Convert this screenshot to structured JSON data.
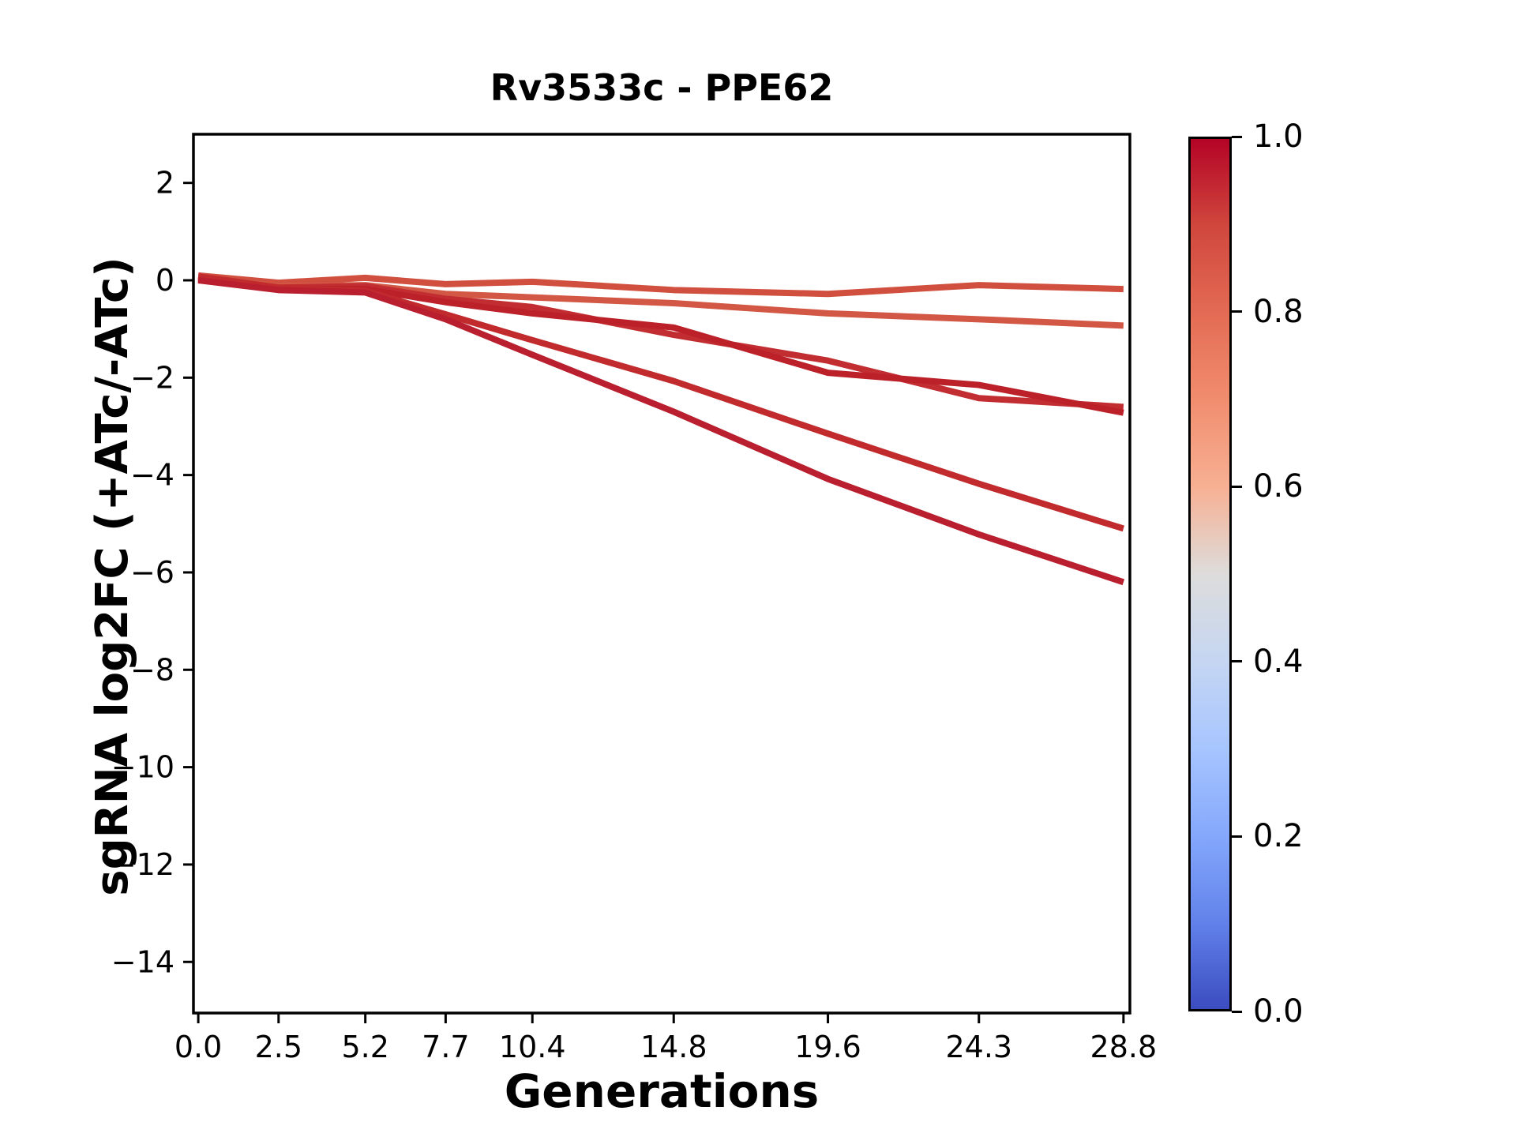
{
  "chart_data": {
    "type": "line",
    "title": "Rv3533c - PPE62",
    "xlabel": "Generations",
    "ylabel": "sgRNA log2FC (+ATc/-ATc)",
    "x": [
      0.0,
      2.5,
      5.2,
      7.7,
      10.4,
      14.8,
      19.6,
      24.3,
      28.8
    ],
    "xtick_labels": [
      "0.0",
      "2.5",
      "5.2",
      "7.7",
      "10.4",
      "14.8",
      "19.6",
      "24.3",
      "28.8"
    ],
    "ytick_labels": [
      "2",
      "0",
      "−2",
      "−4",
      "−6",
      "−8",
      "−10",
      "−12",
      "−14"
    ],
    "xlim": [
      -0.15,
      29.0
    ],
    "ylim": [
      -15.05,
      3.0
    ],
    "grid": false,
    "legend": "none",
    "series": [
      {
        "name": "line-1",
        "color": "#d14f3e",
        "values": [
          0.1,
          -0.05,
          0.05,
          -0.08,
          -0.03,
          -0.2,
          -0.28,
          -0.1,
          -0.18
        ]
      },
      {
        "name": "line-2",
        "color": "#d25845",
        "values": [
          0.05,
          -0.12,
          -0.1,
          -0.28,
          -0.35,
          -0.47,
          -0.68,
          -0.8,
          -0.93
        ]
      },
      {
        "name": "line-3",
        "color": "#c22d31",
        "values": [
          0.08,
          -0.15,
          -0.12,
          -0.38,
          -0.55,
          -1.12,
          -1.65,
          -2.42,
          -2.6
        ]
      },
      {
        "name": "line-4",
        "color": "#bc2029",
        "values": [
          0.02,
          -0.18,
          -0.18,
          -0.45,
          -0.68,
          -0.97,
          -1.9,
          -2.15,
          -2.72
        ]
      },
      {
        "name": "line-5",
        "color": "#c12b2e",
        "values": [
          0.06,
          -0.15,
          -0.22,
          -0.7,
          -1.23,
          -2.07,
          -3.15,
          -4.18,
          -5.1
        ]
      },
      {
        "name": "line-6",
        "color": "#b91f2e",
        "values": [
          0.0,
          -0.2,
          -0.25,
          -0.8,
          -1.53,
          -2.7,
          -4.08,
          -5.22,
          -6.2
        ]
      }
    ],
    "colorbar": {
      "cmap": "coolwarm",
      "tick_labels": [
        "1.0",
        "0.8",
        "0.6",
        "0.4",
        "0.2",
        "0.0"
      ],
      "range": [
        0.0,
        1.0
      ],
      "gradient_top_to_bottom": [
        "#b40426",
        "#d0473d",
        "#e36b54",
        "#f18d6f",
        "#f7b093",
        "#dddcdb",
        "#c5d6f2",
        "#a7c5fe",
        "#85a8fc",
        "#6282ea",
        "#3b4cc0"
      ]
    }
  }
}
